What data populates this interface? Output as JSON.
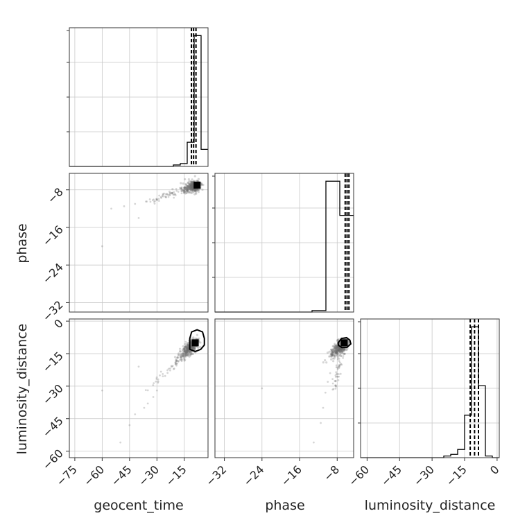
{
  "chart_data": {
    "type": "corner",
    "parameters": [
      "geocent_time",
      "phase",
      "luminosity_distance"
    ],
    "axis_ranges": {
      "geocent_time": [
        -78,
        -2
      ],
      "phase": [
        -34,
        -4.5
      ],
      "luminosity_distance": [
        -63,
        1
      ]
    },
    "ticks": {
      "geocent_time": [
        -75,
        -60,
        -45,
        -30,
        -15
      ],
      "phase": [
        -32,
        -24,
        -16,
        -8
      ],
      "luminosity_distance": [
        -60,
        -45,
        -30,
        -15,
        0
      ]
    },
    "tick_labels": {
      "geocent_time": [
        "−75",
        "−60",
        "−45",
        "−30",
        "−15"
      ],
      "phase": [
        "−32",
        "−24",
        "−16",
        "−8"
      ],
      "luminosity_distance": [
        "−60",
        "−45",
        "−30",
        "−15",
        "0"
      ]
    },
    "histograms": {
      "geocent_time": {
        "bins": [
          -78,
          -74.2,
          -70.4,
          -66.6,
          -62.8,
          -59,
          -55.2,
          -51.4,
          -47.6,
          -43.8,
          -40,
          -36.2,
          -32.4,
          -28.6,
          -24.8,
          -21,
          -17.2,
          -13.4,
          -9.6,
          -5.8,
          -2
        ],
        "counts": [
          0,
          0,
          0,
          0,
          0,
          0,
          0,
          0,
          0,
          0,
          0,
          0,
          0,
          0,
          0,
          1,
          2,
          17,
          92,
          12
        ]
      },
      "phase": {
        "bins": [
          -34,
          -31.05,
          -28.1,
          -25.15,
          -22.2,
          -19.25,
          -16.3,
          -13.35,
          -10.4,
          -7.45,
          -4.5
        ],
        "counts": [
          0,
          0,
          0,
          0,
          0,
          0,
          0,
          1,
          88,
          65
        ]
      },
      "luminosity_distance": {
        "bins": [
          -63,
          -59.8,
          -56.6,
          -53.4,
          -50.2,
          -47,
          -43.8,
          -40.6,
          -37.4,
          -34.2,
          -31,
          -27.8,
          -24.6,
          -21.4,
          -18.2,
          -15,
          -11.8,
          -8.6,
          -5.4,
          -2.2,
          1
        ],
        "counts": [
          0,
          0,
          0,
          0,
          0,
          0,
          0,
          0,
          0,
          0,
          0,
          0,
          1,
          2,
          5,
          26,
          80,
          44,
          1,
          0
        ]
      }
    },
    "quantiles": {
      "geocent_time": [
        -11.1,
        -9.9,
        -8.6
      ],
      "phase": [
        -6.3,
        -5.9,
        -5.5
      ],
      "luminosity_distance": [
        -12.4,
        -10.4,
        -8.6
      ]
    },
    "points_of_interest": {
      "geocent_time_phase": [
        -8,
        -7
      ],
      "geocent_time_luminosity_distance": [
        -9,
        -10
      ],
      "phase_luminosity_distance": [
        -6.5,
        -10
      ]
    },
    "contours": {
      "geocent_time_luminosity_distance": [
        [
          -12,
          -8
        ],
        [
          -11,
          -5
        ],
        [
          -8,
          -4
        ],
        [
          -5,
          -5
        ],
        [
          -4,
          -8
        ],
        [
          -4,
          -11
        ],
        [
          -6,
          -13
        ],
        [
          -9,
          -14
        ],
        [
          -12,
          -13
        ],
        [
          -12,
          -10
        ]
      ],
      "phase_luminosity_distance": [
        [
          -7.8,
          -10
        ],
        [
          -7.1,
          -8
        ],
        [
          -6,
          -7.6
        ],
        [
          -5.3,
          -8.8
        ],
        [
          -5.1,
          -10.5
        ],
        [
          -5.9,
          -12.1
        ],
        [
          -7,
          -12.2
        ],
        [
          -7.7,
          -11.2
        ]
      ]
    },
    "sample_outliers": {
      "geocent_time_phase": [
        [
          -60,
          -20
        ],
        [
          -40,
          -14
        ],
        [
          -55,
          -12
        ],
        [
          -48,
          -11.5
        ],
        [
          -42,
          -11
        ],
        [
          -36,
          -10.5
        ],
        [
          -30,
          -10
        ],
        [
          -25,
          -9.5
        ]
      ],
      "geocent_time_luminosity_distance": [
        [
          -60,
          -32
        ],
        [
          -50,
          -56
        ],
        [
          -45,
          -48
        ],
        [
          -42,
          -43
        ],
        [
          -40,
          -21
        ],
        [
          -37,
          -40
        ],
        [
          -35,
          -38
        ],
        [
          -32,
          -35
        ],
        [
          -30,
          -32
        ]
      ],
      "phase_luminosity_distance": [
        [
          -24,
          -31
        ],
        [
          -13,
          -56
        ],
        [
          -11.5,
          -47
        ],
        [
          -11,
          -40
        ],
        [
          -10.5,
          -33
        ],
        [
          -10,
          -28
        ],
        [
          -9.5,
          -24
        ]
      ]
    },
    "xlabel": [
      "geocent_time",
      "phase",
      "luminosity_distance"
    ],
    "ylabel": [
      "",
      "phase",
      "luminosity_distance"
    ]
  }
}
